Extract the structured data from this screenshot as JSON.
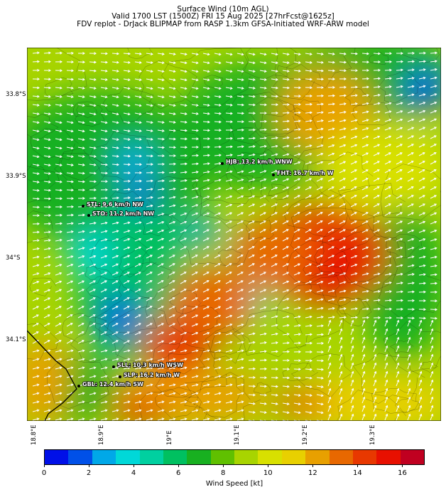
{
  "header": {
    "title_line1": "Surface Wind (10m AGL)",
    "title_line2": "Valid 1700 LST (1500Z) FRI 15 Aug 2025 [27hrFcst@1625z]",
    "title_line3": "FDV replot - DrJack BLIPMAP from RASP 1.3km GFSA-Initiated WRF-ARW model"
  },
  "axes": {
    "lat_labels": [
      "33.8°S",
      "33.9°S",
      "34°S",
      "34.1°S"
    ],
    "lon_labels": [
      "18.8°E",
      "18.9°E",
      "19°E",
      "19.1°E",
      "19.2°E",
      "19.3°E"
    ]
  },
  "stations": [
    {
      "label": "HJB: 13.2 km/h WNW",
      "speed_kt": 7.1,
      "dir": "WNW"
    },
    {
      "label": "FHT: 16.7 km/h W",
      "speed_kt": 9.0,
      "dir": "W"
    },
    {
      "label": "STL: 9.6 km/h NW",
      "speed_kt": 5.2,
      "dir": "NW"
    },
    {
      "label": "STO: 11.2 km/h NW",
      "speed_kt": 6.0,
      "dir": "NW"
    },
    {
      "label": "SLL: 10.3 km/h WSW",
      "speed_kt": 5.6,
      "dir": "WSW"
    },
    {
      "label": "SLP: 16.2 km/h W",
      "speed_kt": 8.7,
      "dir": "W"
    },
    {
      "label": "GBL: 12.4 km/h SW",
      "speed_kt": 6.7,
      "dir": "SW"
    }
  ],
  "colorbar": {
    "label": "Wind Speed [kt]",
    "min": 0,
    "max": 17,
    "ticks": [
      "0",
      "2",
      "4",
      "6",
      "8",
      "10",
      "12",
      "14",
      "16"
    ],
    "tick_values": [
      0,
      2,
      4,
      6,
      8,
      10,
      12,
      14,
      16
    ],
    "colors": [
      "#0010e8",
      "#0050e8",
      "#00a8e8",
      "#00d8d8",
      "#00d0a0",
      "#00c060",
      "#18b020",
      "#60c000",
      "#a8d400",
      "#d8e000",
      "#e8d000",
      "#e8a000",
      "#e86800",
      "#e83800",
      "#e81000",
      "#c00020"
    ]
  }
}
